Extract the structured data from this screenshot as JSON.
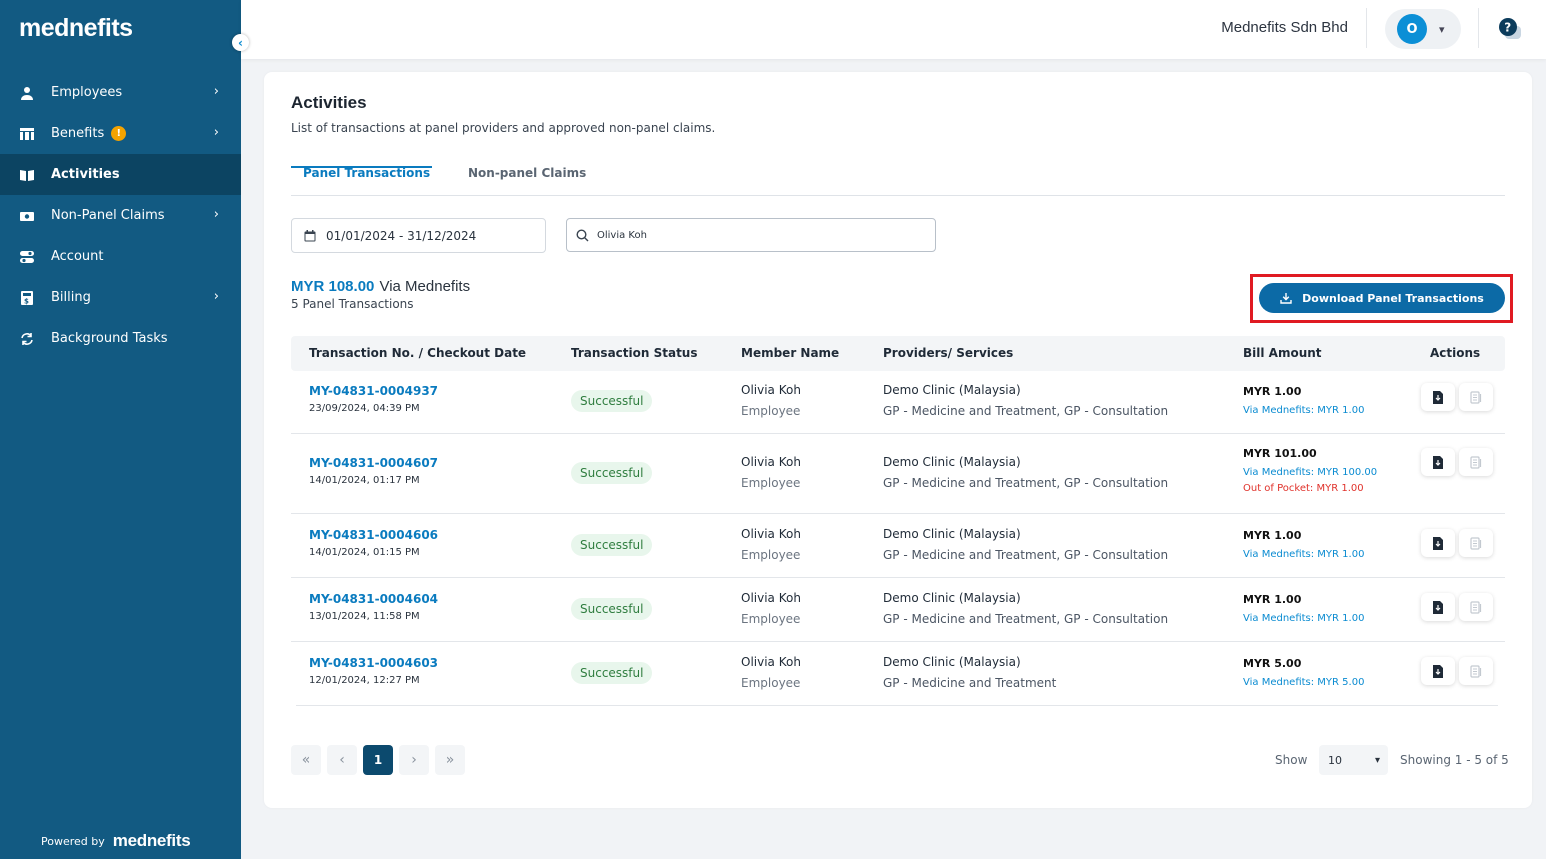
{
  "sidebar": {
    "logo": "mednefits",
    "items": [
      {
        "label": "Employees",
        "icon": "user-icon",
        "chevron": true
      },
      {
        "label": "Benefits",
        "icon": "benefits-icon",
        "chevron": true,
        "badge": "!"
      },
      {
        "label": "Activities",
        "icon": "activities-icon",
        "active": true
      },
      {
        "label": "Non-Panel Claims",
        "icon": "claims-icon",
        "chevron": true
      },
      {
        "label": "Account",
        "icon": "account-icon"
      },
      {
        "label": "Billing",
        "icon": "billing-icon",
        "chevron": true
      },
      {
        "label": "Background Tasks",
        "icon": "sync-icon"
      }
    ],
    "powered_by": "Powered by",
    "powered_logo": "mednefits"
  },
  "header": {
    "company": "Mednefits Sdn Bhd",
    "avatar_initial": "O"
  },
  "page": {
    "title": "Activities",
    "subtitle": "List of transactions at panel providers and approved non-panel claims.",
    "tabs": [
      "Panel Transactions",
      "Non-panel Claims"
    ],
    "date_range": "01/01/2024 - 31/12/2024",
    "search_value": "Olivia Koh",
    "summary_amount": "MYR 108.00",
    "summary_via": "Via Mednefits",
    "summary_count": "5 Panel Transactions",
    "download_label": "Download Panel Transactions"
  },
  "table": {
    "headers": [
      "Transaction No. / Checkout Date",
      "Transaction Status",
      "Member Name",
      "Providers/ Services",
      "Bill Amount",
      "Actions"
    ],
    "rows": [
      {
        "no": "MY-04831-0004937",
        "date": "23/09/2024, 04:39 PM",
        "status": "Successful",
        "member": "Olivia Koh",
        "role": "Employee",
        "provider": "Demo Clinic (Malaysia)",
        "services": "GP - Medicine and Treatment, GP - Consultation",
        "total": "MYR 1.00",
        "via": "Via Mednefits: MYR 1.00",
        "oop": ""
      },
      {
        "no": "MY-04831-0004607",
        "date": "14/01/2024, 01:17 PM",
        "status": "Successful",
        "member": "Olivia Koh",
        "role": "Employee",
        "provider": "Demo Clinic (Malaysia)",
        "services": "GP - Medicine and Treatment, GP - Consultation",
        "total": "MYR 101.00",
        "via": "Via Mednefits: MYR 100.00",
        "oop": "Out of Pocket: MYR 1.00"
      },
      {
        "no": "MY-04831-0004606",
        "date": "14/01/2024, 01:15 PM",
        "status": "Successful",
        "member": "Olivia Koh",
        "role": "Employee",
        "provider": "Demo Clinic (Malaysia)",
        "services": "GP - Medicine and Treatment, GP - Consultation",
        "total": "MYR 1.00",
        "via": "Via Mednefits: MYR 1.00",
        "oop": ""
      },
      {
        "no": "MY-04831-0004604",
        "date": "13/01/2024, 11:58 PM",
        "status": "Successful",
        "member": "Olivia Koh",
        "role": "Employee",
        "provider": "Demo Clinic (Malaysia)",
        "services": "GP - Medicine and Treatment, GP - Consultation",
        "total": "MYR 1.00",
        "via": "Via Mednefits: MYR 1.00",
        "oop": ""
      },
      {
        "no": "MY-04831-0004603",
        "date": "12/01/2024, 12:27 PM",
        "status": "Successful",
        "member": "Olivia Koh",
        "role": "Employee",
        "provider": "Demo Clinic (Malaysia)",
        "services": "GP - Medicine and Treatment",
        "total": "MYR 5.00",
        "via": "Via Mednefits: MYR 5.00",
        "oop": ""
      }
    ]
  },
  "pagination": {
    "first": "«",
    "prev": "‹",
    "current": "1",
    "next": "›",
    "last": "»",
    "show_label": "Show",
    "page_size": "10",
    "showing": "Showing 1 - 5 of 5"
  },
  "colors": {
    "sidebar": "#125a82",
    "accent": "#0a7bbf",
    "highlight_border": "#e01a22"
  }
}
